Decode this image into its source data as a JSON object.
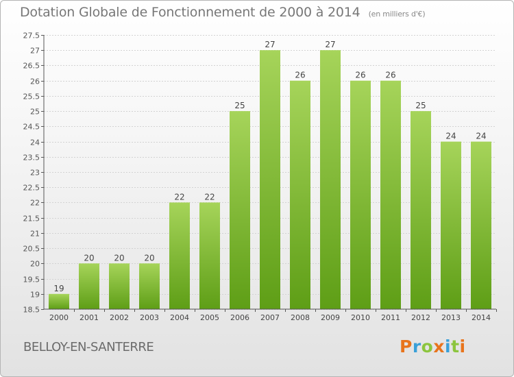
{
  "header": {
    "title": "Dotation Globale de Fonctionnement de 2000 à 2014",
    "subtitle": "(en milliers d'€)"
  },
  "footer": {
    "commune": "BELLOY-EN-SANTERRE",
    "logo": "Proxiti",
    "logo_colors": [
      "#e8741c",
      "#3aa0d8",
      "#8cc53e",
      "#e8741c",
      "#3aa0d8",
      "#8cc53e",
      "#e8741c"
    ]
  },
  "chart_data": {
    "type": "bar",
    "title": "Dotation Globale de Fonctionnement de 2000 à 2014",
    "subtitle": "(en milliers d'€)",
    "xlabel": "",
    "ylabel": "",
    "categories": [
      "2000",
      "2001",
      "2002",
      "2003",
      "2004",
      "2005",
      "2006",
      "2007",
      "2008",
      "2009",
      "2010",
      "2011",
      "2012",
      "2013",
      "2014"
    ],
    "values": [
      19,
      20,
      20,
      20,
      22,
      22,
      25,
      27,
      26,
      27,
      26,
      26,
      25,
      24,
      24
    ],
    "data_labels": [
      "19",
      "20",
      "20",
      "20",
      "22",
      "22",
      "25",
      "27",
      "26",
      "27",
      "26",
      "26",
      "25",
      "24",
      "24"
    ],
    "ylim": [
      18.5,
      27.5
    ],
    "yticks": [
      18.5,
      19,
      19.5,
      20,
      20.5,
      21,
      21.5,
      22,
      22.5,
      23,
      23.5,
      24,
      24.5,
      25,
      25.5,
      26,
      26.5,
      27,
      27.5
    ],
    "ytick_labels": [
      "18.5",
      "19",
      "19.5",
      "20",
      "20.5",
      "21",
      "21.5",
      "22",
      "22.5",
      "23",
      "23.5",
      "24",
      "24.5",
      "25",
      "25.5",
      "26",
      "26.5",
      "27",
      "27.5"
    ],
    "grid": true,
    "bar_color_top": "#a6d45a",
    "bar_color_bottom": "#5e9e16"
  }
}
